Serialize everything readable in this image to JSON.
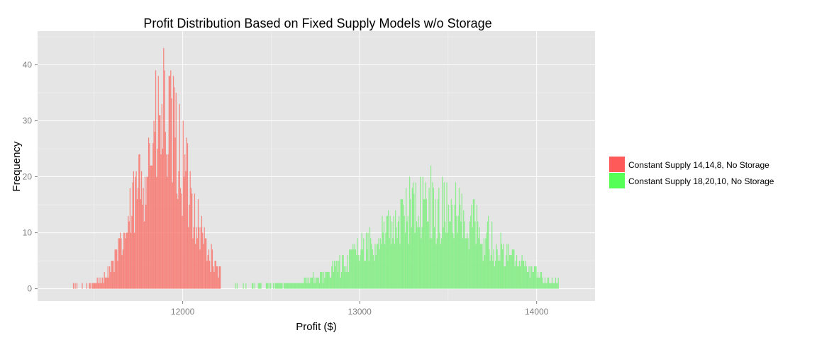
{
  "chart_data": {
    "type": "histogram",
    "title": "Profit Distribution Based on Fixed Supply Models w/o Storage",
    "xlabel": "Profit ($)",
    "ylabel": "Frequency",
    "xlim": [
      11180,
      14330
    ],
    "ylim": [
      -2.2,
      46
    ],
    "x_ticks": [
      12000,
      13000,
      14000
    ],
    "y_ticks": [
      0,
      10,
      20,
      30,
      40
    ],
    "grid": true,
    "legend_position": "right",
    "bin_width": 5,
    "series": [
      {
        "name": "Constant Supply 14,14,8, No Storage",
        "color": "#F8766D",
        "swatch_color": "#FF5A5A",
        "x_min": 11380,
        "x_max": 12210,
        "peak_x": 11890,
        "peak_y": 43
      },
      {
        "name": "Constant Supply 18,20,10, No Storage",
        "color": "#7DEE7D",
        "swatch_color": "#55FF55",
        "x_min": 12290,
        "x_max": 14120,
        "peak_x": 13400,
        "peak_y": 22
      }
    ]
  }
}
